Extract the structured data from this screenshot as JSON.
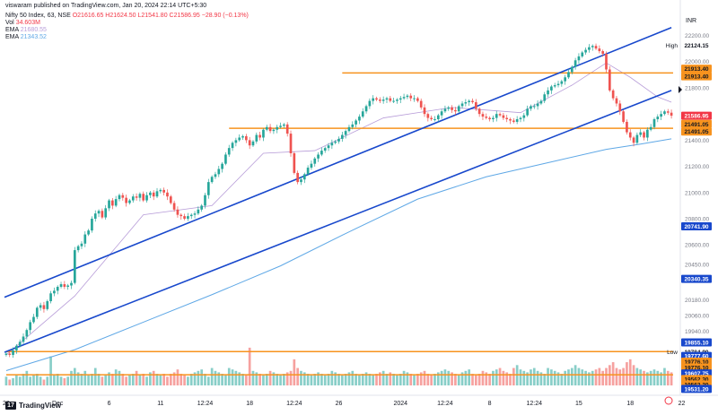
{
  "publisher_line": "viswaram published on TradingView.com, Jan 20, 2024 22:14 UTC+5:30",
  "header": {
    "symbol": "Nifty 50 Index, 63, NSE",
    "ohlc": "O21616.65 H21624.50 L21541.80 C21586.95 −28.90 (−0.13%)",
    "vol_label": "Vol",
    "vol_value": "34.603M",
    "ema1_label": "EMA",
    "ema1_value": "21680.55",
    "ema2_label": "EMA",
    "ema2_value": "21343.52"
  },
  "currency": "INR",
  "footer": {
    "brand": "TradingView",
    "brand_mark": "17"
  },
  "colors": {
    "up": "#26a69a",
    "down": "#ef5350",
    "trendline": "#1848cc",
    "hline": "#f7931e",
    "ema_fast": "#b79cd8",
    "ema_slow": "#5fa8e6",
    "current_label": "#f23645",
    "dark_label": "#1848cc",
    "orange_label": "#f7931e"
  },
  "chart_data": {
    "type": "candlestick",
    "title": "Nifty 50 Index, 63, NSE",
    "ylim": [
      19520,
      22320
    ],
    "y_ticks": [
      22200,
      22000,
      21800,
      21600,
      21400,
      21200,
      21000,
      20800,
      20600,
      20450,
      20180,
      20060,
      19940,
      19700
    ],
    "y_tick_labels": [
      "22200.00",
      "22000.00",
      "21800.00",
      "21600.00",
      "21400.00",
      "21200.00",
      "21000.00",
      "20800.00",
      "20600.00",
      "20450.00",
      "20180.00",
      "20060.00",
      "19940.00",
      "19700.00"
    ],
    "x_tick_labels": [
      {
        "label": "28",
        "bar": 0
      },
      {
        "label": "Dec",
        "bar": 15
      },
      {
        "label": "6",
        "bar": 30
      },
      {
        "label": "11",
        "bar": 45
      },
      {
        "label": "12:24",
        "bar": 58
      },
      {
        "label": "18",
        "bar": 71
      },
      {
        "label": "12:24",
        "bar": 84
      },
      {
        "label": "26",
        "bar": 97
      },
      {
        "label": "2024",
        "bar": 115
      },
      {
        "label": "12:24",
        "bar": 128
      },
      {
        "label": "8",
        "bar": 141
      },
      {
        "label": "12:24",
        "bar": 154
      },
      {
        "label": "15",
        "bar": 167
      },
      {
        "label": "18",
        "bar": 182
      },
      {
        "label": "22",
        "bar": 197
      }
    ],
    "n_bars": 195,
    "closes": [
      19770,
      19760,
      19795,
      19830,
      19860,
      19900,
      19950,
      20010,
      20050,
      20120,
      20140,
      20110,
      20170,
      20230,
      20250,
      20280,
      20300,
      20280,
      20290,
      20310,
      20560,
      20590,
      20610,
      20680,
      20710,
      20800,
      20840,
      20860,
      20810,
      20880,
      20940,
      20900,
      20950,
      20980,
      20960,
      20920,
      20940,
      20970,
      20960,
      20990,
      20940,
      20980,
      21000,
      20970,
      21010,
      21020,
      21000,
      20970,
      20920,
      20870,
      20830,
      20820,
      20800,
      20820,
      20830,
      20840,
      20870,
      20900,
      20980,
      21080,
      21120,
      21140,
      21180,
      21220,
      21290,
      21340,
      21380,
      21400,
      21420,
      21430,
      21400,
      21360,
      21390,
      21440,
      21420,
      21480,
      21500,
      21470,
      21480,
      21500,
      21510,
      21520,
      21450,
      21300,
      21150,
      21080,
      21100,
      21140,
      21190,
      21220,
      21260,
      21290,
      21320,
      21340,
      21360,
      21380,
      21390,
      21410,
      21440,
      21470,
      21500,
      21520,
      21550,
      21580,
      21620,
      21660,
      21700,
      21720,
      21710,
      21700,
      21710,
      21720,
      21700,
      21700,
      21710,
      21720,
      21730,
      21740,
      21720,
      21720,
      21700,
      21650,
      21600,
      21570,
      21560,
      21560,
      21590,
      21620,
      21640,
      21650,
      21630,
      21620,
      21660,
      21680,
      21690,
      21700,
      21690,
      21640,
      21600,
      21580,
      21570,
      21560,
      21570,
      21600,
      21590,
      21570,
      21560,
      21550,
      21540,
      21560,
      21570,
      21590,
      21640,
      21660,
      21660,
      21680,
      21700,
      21750,
      21780,
      21810,
      21820,
      21830,
      21850,
      21880,
      21920,
      21960,
      22010,
      22040,
      22070,
      22090,
      22110,
      22120,
      22100,
      22080,
      22060,
      21940,
      21780,
      21720,
      21680,
      21620,
      21540,
      21460,
      21420,
      21380,
      21440,
      21460,
      21420,
      21480,
      21500,
      21560,
      21580,
      21600,
      21620,
      21610,
      21587
    ],
    "volume_levels": [
      0.3,
      0.2,
      0.25,
      0.35,
      0.3,
      0.4,
      0.5,
      0.3,
      0.35,
      0.4,
      0.3,
      0.2,
      0.3,
      1.0,
      0.35,
      0.4,
      0.3,
      0.25,
      0.3,
      0.5,
      0.6,
      0.45,
      0.4,
      0.5,
      0.35,
      0.4,
      0.6,
      0.4,
      0.3,
      0.35,
      0.45,
      0.4,
      0.55,
      0.5,
      0.4,
      0.3,
      0.35,
      0.4,
      0.5,
      0.35,
      0.4,
      0.3,
      0.45,
      0.5,
      0.4,
      0.35,
      0.4,
      0.3,
      0.4,
      0.45,
      0.55,
      0.4,
      0.35,
      0.3,
      0.4,
      0.45,
      0.5,
      0.55,
      0.4,
      0.3,
      0.6,
      0.5,
      0.45,
      0.4,
      0.35,
      0.6,
      0.55,
      0.5,
      0.45,
      0.4,
      0.35,
      1.3,
      0.5,
      0.45,
      0.4,
      0.35,
      0.4,
      0.5,
      0.45,
      0.4,
      0.35,
      0.4,
      0.45,
      0.5,
      0.9,
      0.6,
      0.5,
      0.45,
      0.4,
      0.35,
      0.4,
      0.45,
      0.4,
      0.35,
      0.4,
      0.5,
      0.45,
      0.4,
      0.35,
      0.4,
      0.45,
      0.5,
      0.4,
      0.35,
      0.4,
      0.45,
      0.4,
      0.35,
      0.4,
      0.45,
      0.5,
      0.4,
      0.45,
      0.4,
      0.35,
      0.4,
      0.5,
      0.45,
      0.4,
      0.35,
      0.4,
      0.45,
      0.5,
      0.4,
      0.35,
      0.4,
      0.45,
      0.5,
      0.55,
      0.5,
      0.45,
      0.4,
      0.35,
      0.45,
      0.5,
      0.55,
      0.4,
      0.35,
      0.4,
      0.5,
      0.45,
      0.4,
      0.5,
      0.55,
      0.6,
      0.5,
      0.45,
      0.4,
      0.6,
      0.7,
      0.55,
      0.5,
      0.45,
      0.55,
      0.6,
      0.5,
      0.45,
      0.4,
      0.6,
      0.55,
      0.5,
      0.45,
      0.4,
      0.5,
      0.55,
      0.6,
      0.7,
      0.6,
      0.55,
      0.5,
      0.45,
      0.5,
      0.55,
      0.6,
      0.5,
      0.6,
      0.7,
      0.8,
      0.6,
      0.55,
      0.6,
      0.8,
      0.9,
      0.7,
      0.6,
      0.55,
      0.5,
      0.45,
      0.5,
      0.55,
      0.5,
      0.45,
      0.6,
      0.5,
      0.45
    ],
    "ema_fast": [
      [
        0,
        19760
      ],
      [
        20,
        20210
      ],
      [
        40,
        20830
      ],
      [
        60,
        20900
      ],
      [
        75,
        21300
      ],
      [
        90,
        21320
      ],
      [
        110,
        21570
      ],
      [
        130,
        21650
      ],
      [
        150,
        21610
      ],
      [
        165,
        21820
      ],
      [
        175,
        21990
      ],
      [
        182,
        21880
      ],
      [
        190,
        21730
      ],
      [
        194,
        21690
      ]
    ],
    "ema_slow": [
      [
        0,
        19640
      ],
      [
        20,
        19800
      ],
      [
        40,
        20010
      ],
      [
        60,
        20220
      ],
      [
        80,
        20440
      ],
      [
        100,
        20700
      ],
      [
        120,
        20950
      ],
      [
        140,
        21120
      ],
      [
        160,
        21240
      ],
      [
        175,
        21330
      ],
      [
        185,
        21370
      ],
      [
        194,
        21410
      ]
    ],
    "trendlines": [
      {
        "from": [
          0,
          20200
        ],
        "to": [
          194,
          22260
        ]
      },
      {
        "from": [
          0,
          19780
        ],
        "to": [
          194,
          21780
        ]
      }
    ],
    "horizontal_lines": [
      {
        "y": 21913.4,
        "from_bar": 98
      },
      {
        "y": 21491.05,
        "from_bar": 65
      },
      {
        "y": 19784.9,
        "from_bar": 0
      },
      {
        "y": 19607.75,
        "from_bar": 0
      }
    ],
    "price_labels": [
      {
        "value": "22124.15",
        "y": 22124.15,
        "style": "plain",
        "tag": "High"
      },
      {
        "value": "21913.40",
        "y": 21946,
        "style": "orange"
      },
      {
        "value": "21913.40",
        "y": 21888,
        "style": "orange"
      },
      {
        "value": "21586.95",
        "y": 21586.95,
        "style": "current"
      },
      {
        "value": "21491.05",
        "y": 21524,
        "style": "orange"
      },
      {
        "value": "21491.05",
        "y": 21466,
        "style": "orange"
      },
      {
        "value": "20741.90",
        "y": 20741.9,
        "style": "dark"
      },
      {
        "value": "20340.35",
        "y": 20340.35,
        "style": "dark"
      },
      {
        "value": "19855.10",
        "y": 19855.1,
        "style": "dark"
      },
      {
        "value": "19784.90",
        "y": 19784.9,
        "style": "plain",
        "tag": "Low"
      },
      {
        "value": "19777.60",
        "y": 19752,
        "style": "dark"
      },
      {
        "value": "19776.10",
        "y": 19708,
        "style": "orange"
      },
      {
        "value": "19776.10",
        "y": 19664,
        "style": "orange"
      },
      {
        "value": "19607.75",
        "y": 19618,
        "style": "dark"
      },
      {
        "value": "19562.30",
        "y": 19576,
        "style": "orange"
      },
      {
        "value": "19562.30",
        "y": 19534,
        "style": "orange"
      },
      {
        "value": "19531.20",
        "y": 19500,
        "style": "dark"
      }
    ]
  }
}
